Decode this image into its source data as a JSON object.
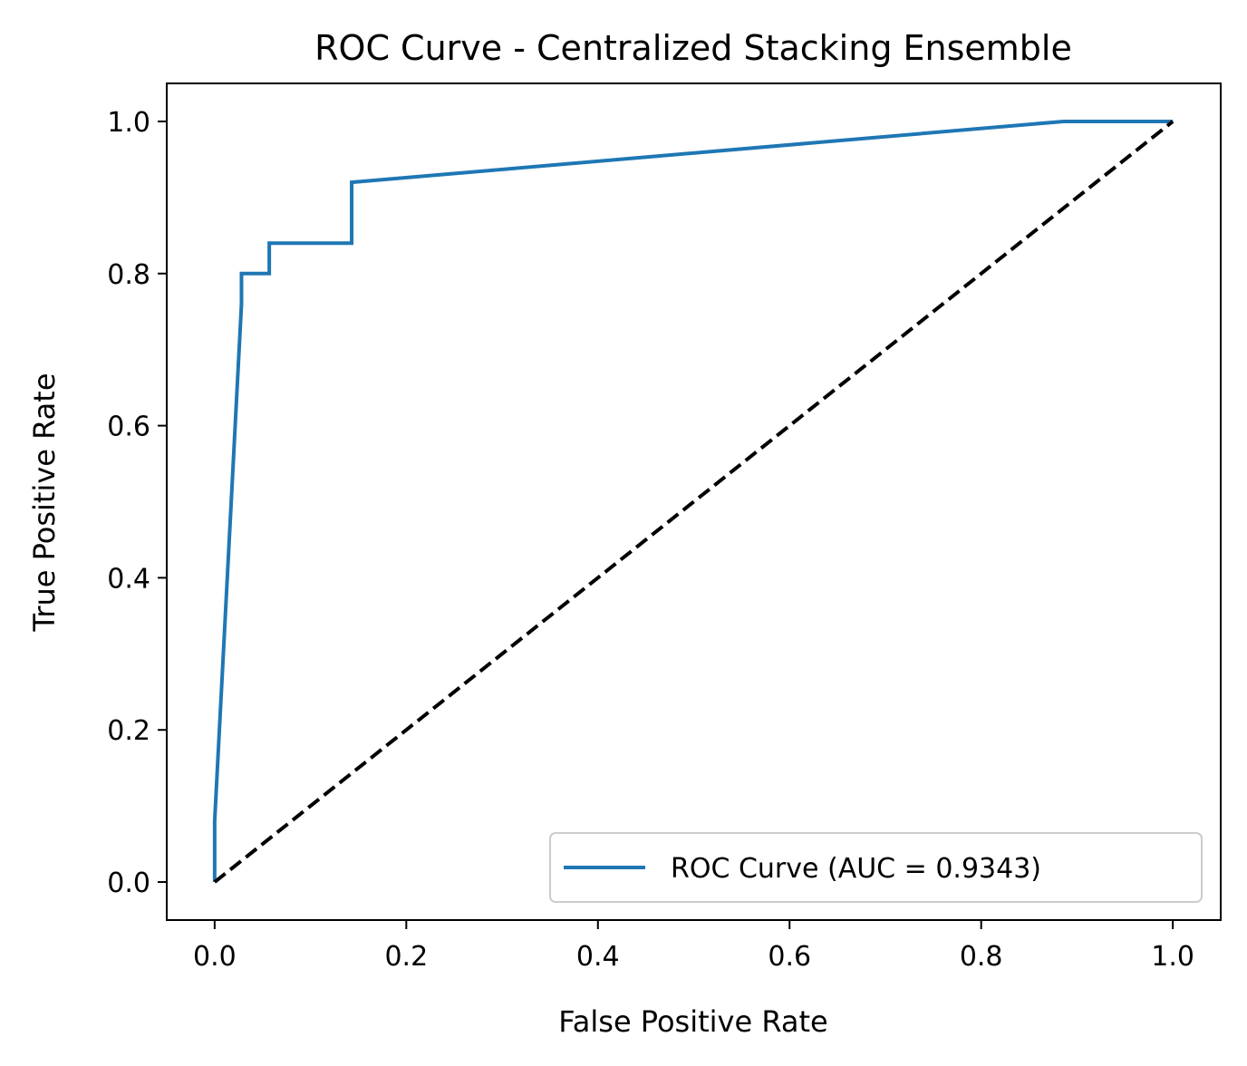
{
  "chart_data": {
    "type": "line",
    "title": "ROC Curve - Centralized Stacking Ensemble",
    "xlabel": "False Positive Rate",
    "ylabel": "True Positive Rate",
    "xlim": [
      -0.05,
      1.05
    ],
    "ylim": [
      -0.05,
      1.05
    ],
    "x_ticks": [
      0.0,
      0.2,
      0.4,
      0.6,
      0.8,
      1.0
    ],
    "y_ticks": [
      0.0,
      0.2,
      0.4,
      0.6,
      0.8,
      1.0
    ],
    "x_tick_labels": [
      "0.0",
      "0.2",
      "0.4",
      "0.6",
      "0.8",
      "1.0"
    ],
    "y_tick_labels": [
      "0.0",
      "0.2",
      "0.4",
      "0.6",
      "0.8",
      "1.0"
    ],
    "grid": false,
    "legend_position": "lower-right",
    "series": [
      {
        "name": "ROC Curve (AUC = 0.9343)",
        "color": "#1f77b4",
        "style": "solid",
        "x": [
          0.0,
          0.0,
          0.0,
          0.028,
          0.028,
          0.028,
          0.057,
          0.057,
          0.143,
          0.143,
          0.886,
          1.0
        ],
        "y": [
          0.0,
          0.04,
          0.08,
          0.76,
          0.8,
          0.8,
          0.8,
          0.84,
          0.84,
          0.92,
          1.0,
          1.0
        ]
      },
      {
        "color": "#000000",
        "style": "dashed",
        "x": [
          0.0,
          1.0
        ],
        "y": [
          0.0,
          1.0
        ]
      }
    ]
  }
}
